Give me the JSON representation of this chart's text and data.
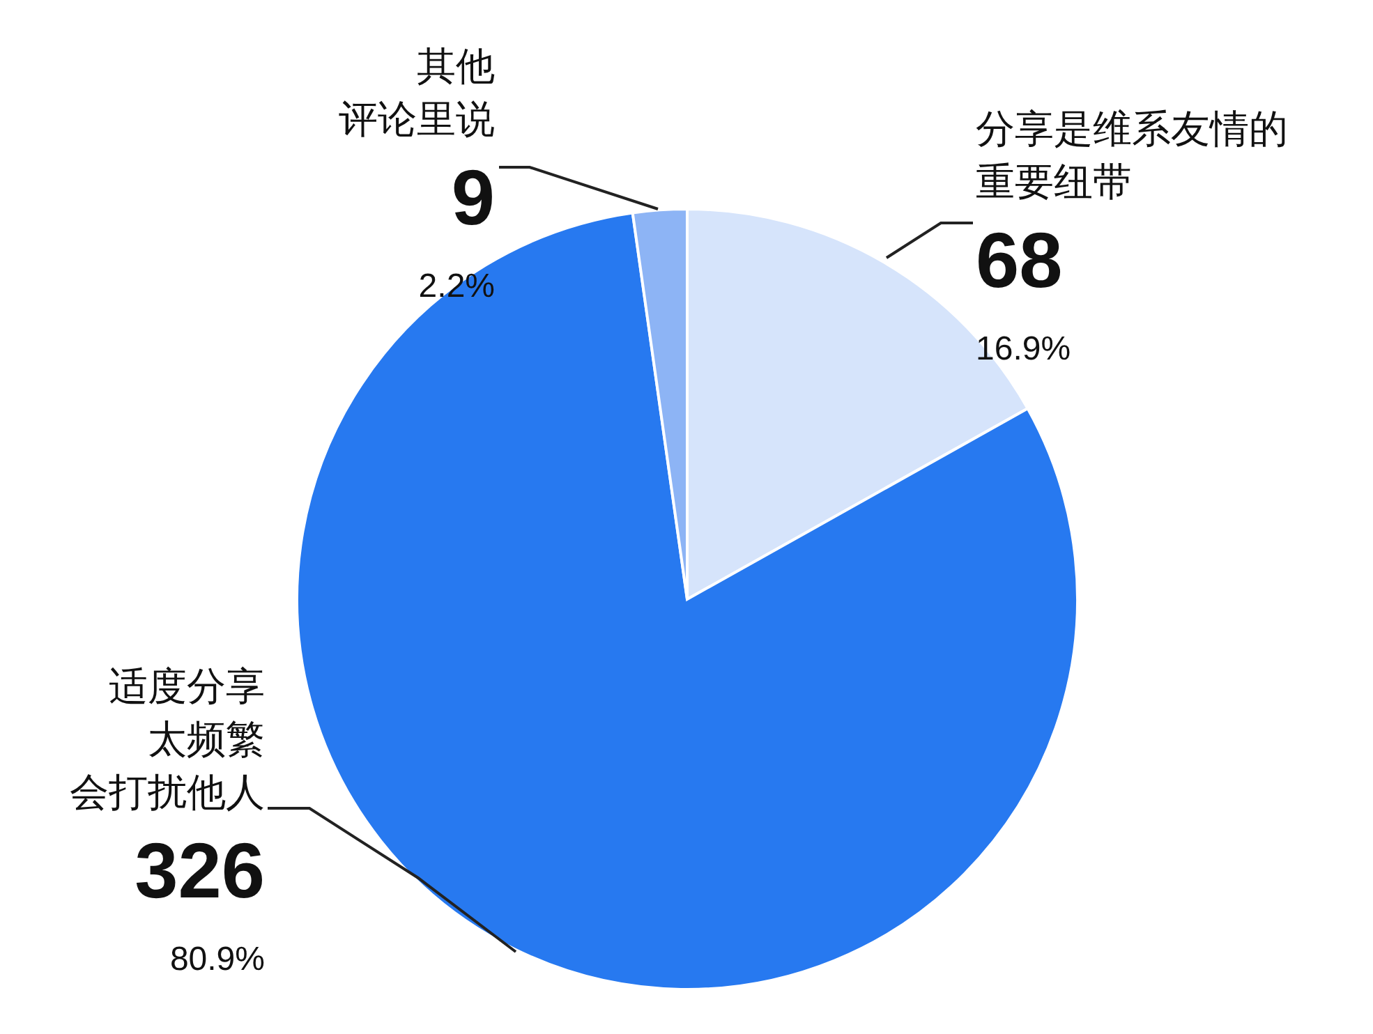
{
  "chart_data": {
    "type": "pie",
    "categories": [
      "分享是维系友情的重要纽带",
      "适度分享太频繁会打扰他人",
      "其他评论里说"
    ],
    "values": [
      68,
      326,
      9
    ],
    "colors": [
      "#d6e4fb",
      "#2779f0",
      "#8db4f5"
    ],
    "value_labels": [
      "68",
      "326",
      "9"
    ],
    "annotations": [
      "16.9%",
      "80.9%",
      "2.2%"
    ]
  }
}
